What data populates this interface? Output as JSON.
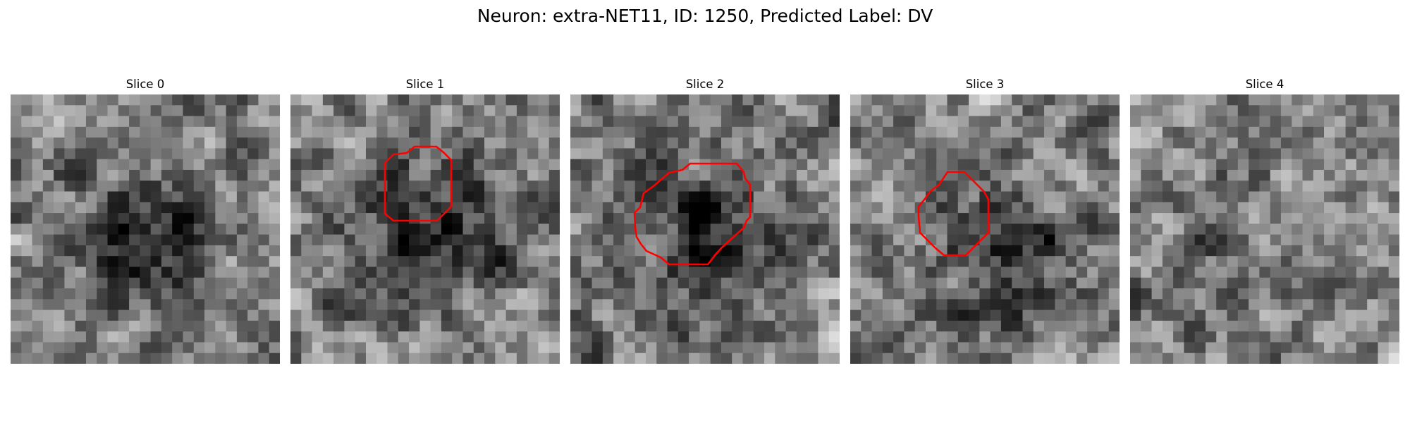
{
  "figure": {
    "title": "Neuron: extra-NET11, ID: 1250, Predicted Label: DV"
  },
  "colors": {
    "contour": "#ff0000",
    "background": "#ffffff"
  },
  "colormap": "gray",
  "slices": [
    {
      "title": "Slice 0",
      "has_contour": false
    },
    {
      "title": "Slice 1",
      "has_contour": true
    },
    {
      "title": "Slice 2",
      "has_contour": true
    },
    {
      "title": "Slice 3",
      "has_contour": true
    },
    {
      "title": "Slice 4",
      "has_contour": false
    }
  ]
}
